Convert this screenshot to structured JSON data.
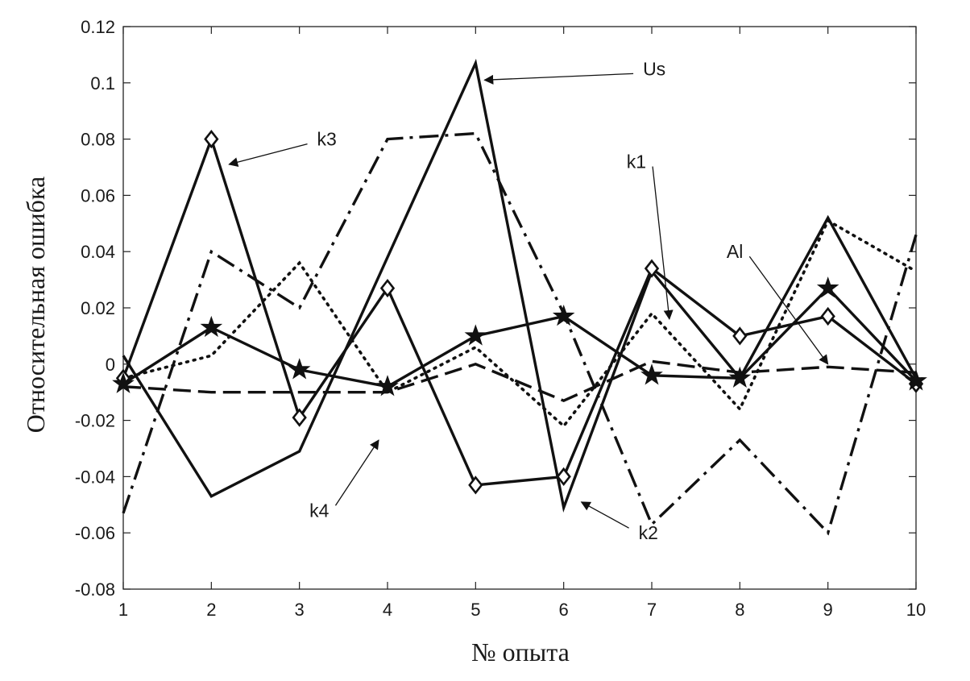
{
  "chart_data": {
    "type": "line",
    "title": "",
    "xlabel": "№ опыта",
    "ylabel": "Относительная ошибка",
    "x": [
      1,
      2,
      3,
      4,
      5,
      6,
      7,
      8,
      9,
      10
    ],
    "xlim": [
      1,
      10
    ],
    "ylim": [
      -0.08,
      0.12
    ],
    "xticks": [
      "1",
      "2",
      "3",
      "4",
      "5",
      "6",
      "7",
      "8",
      "9",
      "10"
    ],
    "yticks": [
      "-0.08",
      "-0.06",
      "-0.04",
      "-0.02",
      "0",
      "0.02",
      "0.04",
      "0.06",
      "0.08",
      "0.1",
      "0.12"
    ],
    "grid": false,
    "legend": "none",
    "series": [
      {
        "name": "Us",
        "style": "solid",
        "marker": "none",
        "values": [
          0.003,
          -0.047,
          -0.031,
          0.038,
          0.107,
          -0.051,
          0.033,
          -0.005,
          0.052,
          -0.005
        ]
      },
      {
        "name": "k3",
        "style": "solid",
        "marker": "diamond",
        "values": [
          -0.005,
          0.08,
          -0.019,
          0.027,
          -0.043,
          -0.04,
          0.034,
          0.01,
          0.017,
          -0.007
        ]
      },
      {
        "name": "k4",
        "style": "solid",
        "marker": "star",
        "values": [
          -0.007,
          0.013,
          -0.002,
          -0.008,
          0.01,
          0.017,
          -0.004,
          -0.005,
          0.027,
          -0.006
        ]
      },
      {
        "name": "k1",
        "style": "dotted",
        "marker": "none",
        "values": [
          -0.005,
          0.003,
          0.036,
          -0.01,
          0.006,
          -0.022,
          0.018,
          -0.016,
          0.051,
          0.033
        ]
      },
      {
        "name": "k2",
        "style": "dashdot",
        "marker": "none",
        "values": [
          -0.053,
          0.04,
          0.02,
          0.08,
          0.082,
          0.018,
          -0.057,
          -0.027,
          -0.06,
          0.046
        ]
      },
      {
        "name": "Al",
        "style": "dashed",
        "marker": "none",
        "values": [
          -0.008,
          -0.01,
          -0.01,
          -0.01,
          0.0,
          -0.013,
          0.001,
          -0.003,
          -0.001,
          -0.003
        ]
      }
    ],
    "annotations": [
      {
        "text": "Us",
        "text_at": [
          6.9,
          0.105
        ],
        "arrow_to": [
          5.1,
          0.101
        ]
      },
      {
        "text": "k3",
        "text_at": [
          3.2,
          0.08
        ],
        "arrow_to": [
          2.2,
          0.071
        ]
      },
      {
        "text": "k1",
        "text_at": [
          6.9,
          0.072
        ],
        "arrow_to": [
          7.2,
          0.016
        ]
      },
      {
        "text": "Al",
        "text_at": [
          8.0,
          0.04
        ],
        "arrow_to": [
          9.0,
          0.0
        ]
      },
      {
        "text": "k4",
        "text_at": [
          3.3,
          -0.052
        ],
        "arrow_to": [
          3.9,
          -0.027
        ]
      },
      {
        "text": "k2",
        "text_at": [
          6.85,
          -0.06
        ],
        "arrow_to": [
          6.2,
          -0.049
        ]
      }
    ]
  }
}
